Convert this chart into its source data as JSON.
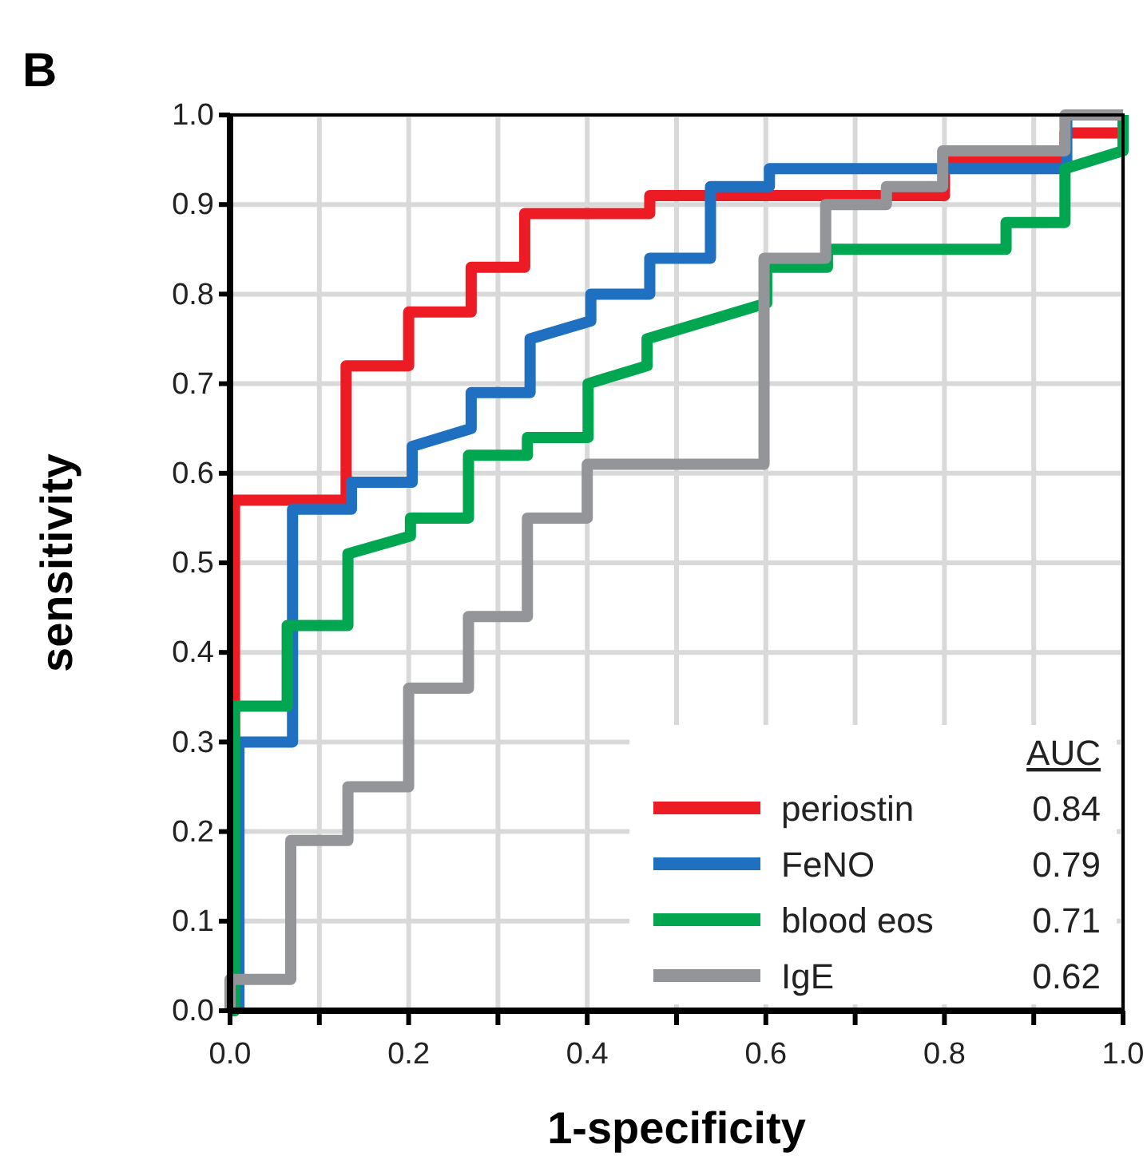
{
  "chart_data": {
    "type": "line",
    "title": "B",
    "xlabel": "1-specificity",
    "ylabel": "sensitivity",
    "legend_title": "AUC",
    "legend": "bottom right",
    "grid": true,
    "line_style": "solid",
    "marker": "none",
    "xlim": [
      0,
      1
    ],
    "ylim": [
      0,
      1
    ],
    "xticks": [
      {
        "value": 0,
        "label": "0.0"
      },
      {
        "value": 0.1,
        "label": null
      },
      0.2,
      {
        "value": 0.3,
        "label": null
      },
      0.4,
      {
        "value": 0.5,
        "label": null
      },
      0.6,
      {
        "value": 0.7,
        "label": null
      },
      0.8,
      {
        "value": 0.9,
        "label": null
      },
      {
        "value": 1,
        "label": "1.0"
      }
    ],
    "yticks": [
      {
        "value": 0,
        "label": "0.0"
      },
      0.1,
      0.2,
      0.3,
      0.4,
      0.5,
      0.6,
      0.7,
      0.8,
      0.9,
      {
        "value": 1,
        "label": "1.0"
      }
    ],
    "annotations": [
      "0.84",
      "0.79",
      "0.71",
      "0.62"
    ],
    "series": [
      {
        "name": "periostin",
        "color": "#ed1c24",
        "x": [
          0,
          0.005,
          0.005,
          0.13,
          0.13,
          0.2,
          0.2,
          0.27,
          0.27,
          0.33,
          0.33,
          0.47,
          0.47,
          0.8,
          0.8,
          0.935,
          0.935,
          1
        ],
        "values": [
          0,
          0,
          0.57,
          0.57,
          0.72,
          0.72,
          0.78,
          0.78,
          0.83,
          0.83,
          0.89,
          0.89,
          0.91,
          0.91,
          0.95,
          0.95,
          0.98,
          0.98
        ]
      },
      {
        "name": "FeNO",
        "color": "#1f70c1",
        "x": [
          0.01,
          0.01,
          0.07,
          0.07,
          0.136,
          0.136,
          0.204,
          0.204,
          0.27,
          0.27,
          0.336,
          0.336,
          0.404,
          0.404,
          0.47,
          0.47,
          0.538,
          0.538,
          0.604,
          0.604,
          0.937,
          0.937
        ],
        "values": [
          0,
          0.3,
          0.3,
          0.56,
          0.56,
          0.59,
          0.59,
          0.63,
          0.65,
          0.69,
          0.69,
          0.75,
          0.77,
          0.8,
          0.8,
          0.84,
          0.84,
          0.92,
          0.92,
          0.94,
          0.94,
          1
        ]
      },
      {
        "name": "blood eos",
        "color": "#00a650",
        "x": [
          0,
          0.005,
          0.005,
          0.064,
          0.064,
          0.132,
          0.132,
          0.202,
          0.202,
          0.267,
          0.267,
          0.333,
          0.333,
          0.401,
          0.401,
          0.467,
          0.467,
          0.601,
          0.601,
          0.669,
          0.669,
          0.869,
          0.869,
          0.935,
          0.935,
          1,
          1
        ],
        "values": [
          0,
          0,
          0.34,
          0.34,
          0.43,
          0.43,
          0.51,
          0.53,
          0.55,
          0.55,
          0.62,
          0.62,
          0.64,
          0.64,
          0.7,
          0.72,
          0.75,
          0.79,
          0.83,
          0.83,
          0.85,
          0.85,
          0.88,
          0.88,
          0.94,
          0.96,
          1
        ]
      },
      {
        "name": "IgE",
        "color": "#939598",
        "x": [
          0,
          0,
          0.068,
          0.068,
          0.132,
          0.132,
          0.2,
          0.2,
          0.267,
          0.267,
          0.333,
          0.333,
          0.4,
          0.4,
          0.598,
          0.598,
          0.667,
          0.667,
          0.735,
          0.735,
          0.798,
          0.798,
          0.935,
          0.935,
          1
        ],
        "values": [
          0,
          0.035,
          0.035,
          0.19,
          0.19,
          0.25,
          0.25,
          0.36,
          0.36,
          0.44,
          0.44,
          0.55,
          0.55,
          0.61,
          0.61,
          0.84,
          0.84,
          0.9,
          0.9,
          0.92,
          0.92,
          0.96,
          0.96,
          1,
          1
        ]
      }
    ]
  }
}
